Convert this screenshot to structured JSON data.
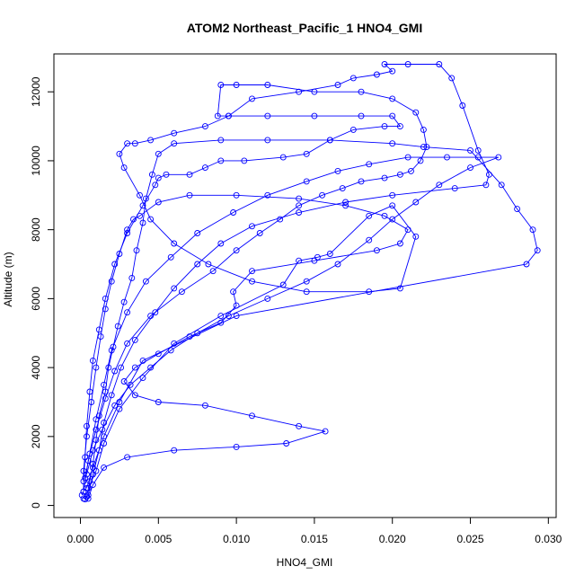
{
  "chart_data": {
    "type": "line",
    "title": "ATOM2 Northeast_Pacific_1 HNO4_GMI",
    "xlabel": "HNO4_GMI",
    "ylabel": "Altitude (m)",
    "xlim": [
      -0.0017,
      0.0305
    ],
    "ylim": [
      -350,
      13100
    ],
    "x_ticks": [
      0.0,
      0.005,
      0.01,
      0.015,
      0.02,
      0.025,
      0.03
    ],
    "x_tick_labels": [
      "0.000",
      "0.005",
      "0.010",
      "0.015",
      "0.020",
      "0.025",
      "0.030"
    ],
    "y_ticks": [
      0,
      2000,
      4000,
      6000,
      8000,
      10000,
      12000
    ],
    "y_tick_labels": [
      "0",
      "2000",
      "4000",
      "6000",
      "8000",
      "10000",
      "12000"
    ],
    "grid": false,
    "legend": "none",
    "series_color": "#0000ff",
    "marker": "open-circle",
    "series": [
      {
        "values": [
          [
            0.0002,
            200
          ],
          [
            0.0004,
            250
          ],
          [
            0.0006,
            700
          ],
          [
            0.0008,
            1200
          ],
          [
            0.001,
            1900
          ],
          [
            0.0012,
            2600
          ],
          [
            0.0016,
            3300
          ],
          [
            0.0018,
            4000
          ],
          [
            0.0021,
            4600
          ],
          [
            0.0024,
            5200
          ],
          [
            0.0028,
            5900
          ],
          [
            0.0033,
            6600
          ],
          [
            0.0036,
            7400
          ],
          [
            0.004,
            8200
          ],
          [
            0.0042,
            8900
          ],
          [
            0.0046,
            9600
          ],
          [
            0.005,
            10200
          ],
          [
            0.006,
            10500
          ],
          [
            0.009,
            10600
          ],
          [
            0.012,
            10600
          ],
          [
            0.016,
            10600
          ],
          [
            0.02,
            10500
          ],
          [
            0.022,
            10400
          ],
          [
            0.025,
            10300
          ],
          [
            0.027,
            9300
          ],
          [
            0.028,
            8600
          ],
          [
            0.029,
            8000
          ],
          [
            0.0293,
            7400
          ],
          [
            0.0286,
            7000
          ],
          [
            0.01,
            5500
          ],
          [
            0.004,
            4200
          ],
          [
            0.0025,
            3000
          ],
          [
            0.0015,
            2000
          ],
          [
            0.0008,
            1100
          ],
          [
            0.0004,
            500
          ]
        ]
      },
      {
        "values": [
          [
            0.0003,
            180
          ],
          [
            0.0005,
            300
          ],
          [
            0.0008,
            900
          ],
          [
            0.0012,
            1600
          ],
          [
            0.0015,
            2400
          ],
          [
            0.002,
            3200
          ],
          [
            0.0026,
            4000
          ],
          [
            0.0035,
            4800
          ],
          [
            0.0048,
            5600
          ],
          [
            0.006,
            6300
          ],
          [
            0.0075,
            7000
          ],
          [
            0.009,
            7600
          ],
          [
            0.011,
            8100
          ],
          [
            0.014,
            8500
          ],
          [
            0.017,
            8800
          ],
          [
            0.02,
            9000
          ],
          [
            0.024,
            9200
          ],
          [
            0.026,
            9300
          ],
          [
            0.0262,
            9600
          ],
          [
            0.0255,
            10300
          ],
          [
            0.0245,
            11600
          ],
          [
            0.0238,
            12400
          ],
          [
            0.023,
            12800
          ],
          [
            0.021,
            12800
          ],
          [
            0.0195,
            12800
          ],
          [
            0.02,
            12600
          ],
          [
            0.019,
            12500
          ],
          [
            0.0175,
            12400
          ],
          [
            0.0165,
            12200
          ],
          [
            0.014,
            12000
          ],
          [
            0.011,
            11800
          ],
          [
            0.0095,
            11300
          ],
          [
            0.008,
            11000
          ],
          [
            0.006,
            10800
          ],
          [
            0.0045,
            10600
          ],
          [
            0.0035,
            10500
          ],
          [
            0.003,
            10500
          ],
          [
            0.0025,
            10200
          ],
          [
            0.0028,
            9800
          ],
          [
            0.0038,
            9000
          ],
          [
            0.0045,
            8300
          ],
          [
            0.006,
            7600
          ],
          [
            0.0082,
            7000
          ],
          [
            0.011,
            6500
          ],
          [
            0.0145,
            6200
          ],
          [
            0.0185,
            6200
          ],
          [
            0.0205,
            6300
          ],
          [
            0.0215,
            7800
          ],
          [
            0.02,
            8700
          ],
          [
            0.0185,
            8400
          ],
          [
            0.016,
            7300
          ],
          [
            0.0152,
            7200
          ],
          [
            0.014,
            7100
          ],
          [
            0.013,
            6400
          ],
          [
            0.009,
            5500
          ],
          [
            0.006,
            4700
          ],
          [
            0.004,
            3700
          ],
          [
            0.0025,
            2800
          ],
          [
            0.0015,
            1800
          ],
          [
            0.001,
            1000
          ],
          [
            0.0005,
            500
          ]
        ]
      },
      {
        "values": [
          [
            0.0001,
            300
          ],
          [
            0.0002,
            400
          ],
          [
            0.0005,
            1300
          ],
          [
            0.001,
            2200
          ],
          [
            0.0016,
            3100
          ],
          [
            0.0022,
            3900
          ],
          [
            0.003,
            4700
          ],
          [
            0.0045,
            5500
          ],
          [
            0.0065,
            6200
          ],
          [
            0.0085,
            6800
          ],
          [
            0.01,
            7400
          ],
          [
            0.0115,
            7900
          ],
          [
            0.0128,
            8300
          ],
          [
            0.014,
            8700
          ],
          [
            0.0155,
            9000
          ],
          [
            0.0168,
            9200
          ],
          [
            0.018,
            9400
          ],
          [
            0.0195,
            9500
          ],
          [
            0.0205,
            9600
          ],
          [
            0.0212,
            9700
          ],
          [
            0.0218,
            10000
          ],
          [
            0.0222,
            10400
          ],
          [
            0.022,
            10900
          ],
          [
            0.0215,
            11400
          ],
          [
            0.02,
            11800
          ],
          [
            0.018,
            12000
          ],
          [
            0.015,
            12000
          ],
          [
            0.012,
            12200
          ],
          [
            0.01,
            12200
          ],
          [
            0.009,
            12200
          ],
          [
            0.0088,
            11300
          ],
          [
            0.0095,
            11300
          ],
          [
            0.012,
            11300
          ],
          [
            0.015,
            11300
          ],
          [
            0.018,
            11300
          ],
          [
            0.02,
            11300
          ],
          [
            0.0205,
            11000
          ],
          [
            0.0195,
            11000
          ],
          [
            0.0175,
            10900
          ],
          [
            0.016,
            10600
          ],
          [
            0.0145,
            10200
          ],
          [
            0.013,
            10100
          ],
          [
            0.0105,
            10000
          ],
          [
            0.009,
            10000
          ],
          [
            0.008,
            9800
          ],
          [
            0.007,
            9600
          ],
          [
            0.0055,
            9600
          ],
          [
            0.005,
            9500
          ],
          [
            0.0048,
            9300
          ],
          [
            0.004,
            8700
          ],
          [
            0.003,
            7900
          ],
          [
            0.0022,
            7000
          ],
          [
            0.0016,
            6000
          ],
          [
            0.0012,
            5100
          ],
          [
            0.0008,
            4200
          ],
          [
            0.0006,
            3300
          ],
          [
            0.0004,
            2300
          ],
          [
            0.0003,
            1400
          ],
          [
            0.0002,
            700
          ]
        ]
      },
      {
        "values": [
          [
            0.0005,
            200
          ],
          [
            0.0008,
            600
          ],
          [
            0.0015,
            1100
          ],
          [
            0.003,
            1400
          ],
          [
            0.006,
            1600
          ],
          [
            0.01,
            1700
          ],
          [
            0.0132,
            1800
          ],
          [
            0.0157,
            2150
          ],
          [
            0.014,
            2300
          ],
          [
            0.011,
            2600
          ],
          [
            0.008,
            2900
          ],
          [
            0.005,
            3000
          ],
          [
            0.0035,
            3200
          ],
          [
            0.0028,
            3600
          ],
          [
            0.0035,
            4000
          ],
          [
            0.005,
            4400
          ],
          [
            0.007,
            4900
          ],
          [
            0.009,
            5300
          ],
          [
            0.01,
            5800
          ],
          [
            0.0098,
            6200
          ],
          [
            0.011,
            6800
          ],
          [
            0.015,
            7100
          ],
          [
            0.019,
            7400
          ],
          [
            0.0205,
            7600
          ],
          [
            0.021,
            8000
          ],
          [
            0.0195,
            8400
          ],
          [
            0.017,
            8700
          ],
          [
            0.014,
            8900
          ],
          [
            0.01,
            9000
          ],
          [
            0.007,
            9000
          ],
          [
            0.005,
            8800
          ],
          [
            0.0038,
            8400
          ],
          [
            0.0034,
            8300
          ],
          [
            0.003,
            8000
          ],
          [
            0.0025,
            7300
          ],
          [
            0.002,
            6500
          ],
          [
            0.0016,
            5700
          ],
          [
            0.0013,
            4900
          ],
          [
            0.001,
            4000
          ],
          [
            0.0007,
            3000
          ],
          [
            0.0004,
            2000
          ],
          [
            0.0002,
            1000
          ],
          [
            0.0002,
            400
          ]
        ]
      },
      {
        "values": [
          [
            0.0003,
            800
          ],
          [
            0.0006,
            1500
          ],
          [
            0.001,
            2500
          ],
          [
            0.0015,
            3500
          ],
          [
            0.002,
            4500
          ],
          [
            0.003,
            5600
          ],
          [
            0.0042,
            6500
          ],
          [
            0.0058,
            7200
          ],
          [
            0.0075,
            7900
          ],
          [
            0.0098,
            8500
          ],
          [
            0.012,
            9000
          ],
          [
            0.0145,
            9400
          ],
          [
            0.0165,
            9700
          ],
          [
            0.0185,
            9900
          ],
          [
            0.021,
            10100
          ],
          [
            0.0235,
            10100
          ],
          [
            0.0255,
            10100
          ],
          [
            0.0268,
            10100
          ],
          [
            0.025,
            9800
          ],
          [
            0.023,
            9300
          ],
          [
            0.0215,
            8800
          ],
          [
            0.02,
            8300
          ],
          [
            0.0185,
            7700
          ],
          [
            0.0165,
            7000
          ],
          [
            0.0145,
            6500
          ],
          [
            0.012,
            6000
          ],
          [
            0.0095,
            5500
          ],
          [
            0.0075,
            5000
          ],
          [
            0.0058,
            4500
          ],
          [
            0.0045,
            4000
          ],
          [
            0.0032,
            3500
          ],
          [
            0.0022,
            2900
          ],
          [
            0.0014,
            2200
          ],
          [
            0.0008,
            1600
          ],
          [
            0.0004,
            900
          ]
        ]
      }
    ]
  }
}
